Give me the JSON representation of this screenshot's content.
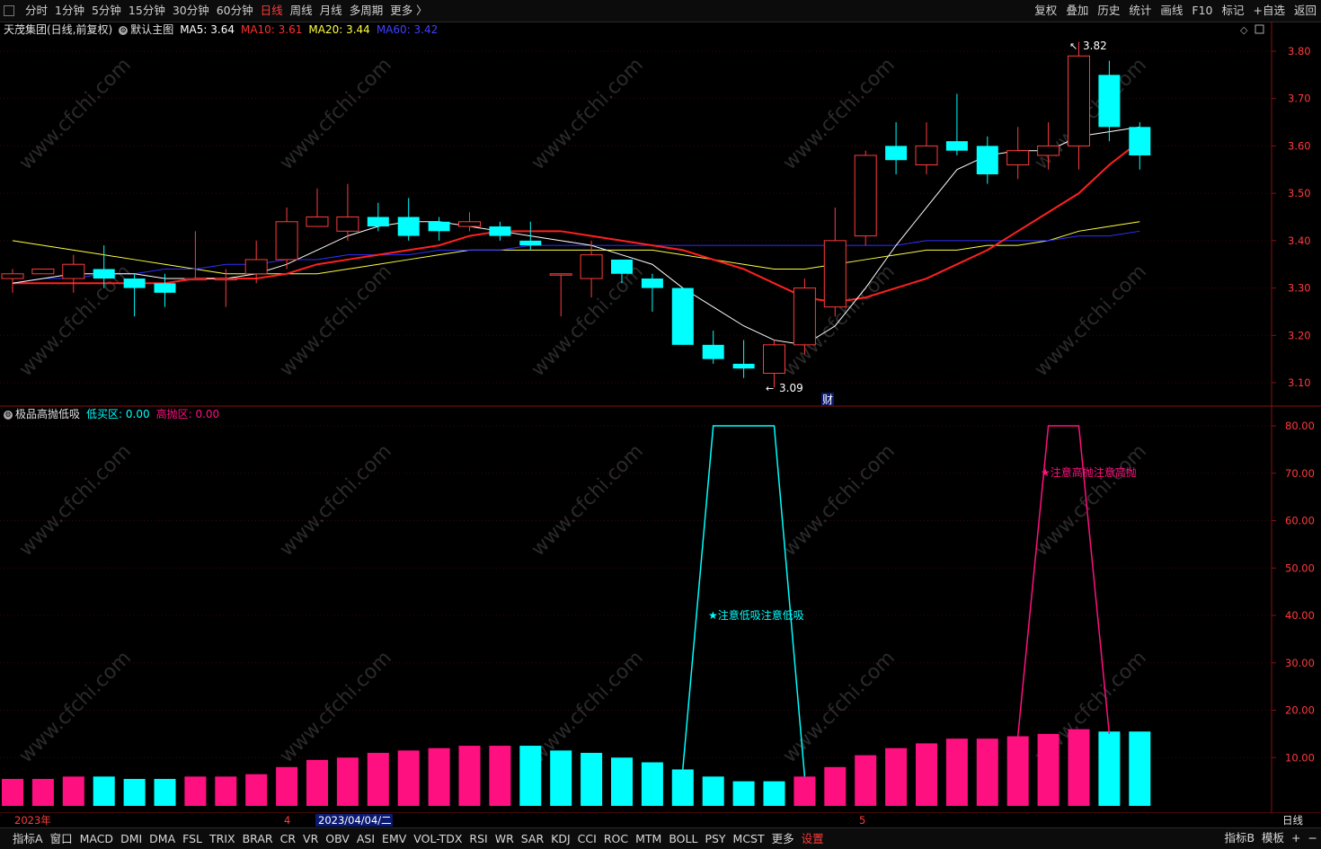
{
  "toolbar": {
    "tabs": [
      "分时",
      "1分钟",
      "5分钟",
      "15分钟",
      "30分钟",
      "60分钟",
      "日线",
      "周线",
      "月线",
      "多周期",
      "更多 〉"
    ],
    "active_tab": "日线",
    "right_buttons": [
      "复权",
      "叠加",
      "历史",
      "统计",
      "画线",
      "F10",
      "标记",
      "+自选",
      "返回"
    ]
  },
  "main_legend": {
    "stock": "天茂集团(日线,前复权)",
    "main_name": "默认主图",
    "ma5": "MA5: 3.64",
    "ma10": "MA10: 3.61",
    "ma20": "MA20: 3.44",
    "ma60": "MA60: 3.42"
  },
  "indicator_legend": {
    "name": "极品高抛低吸",
    "low": "低买区: 0.00",
    "high": "高抛区: 0.00"
  },
  "annotations": {
    "high_price": "3.82",
    "low_price": "3.09",
    "cai_marker": "财",
    "low_buy_text": "★注意低吸注意低吸",
    "high_sell_text": "★注意高抛注意高抛"
  },
  "date_axis": {
    "year": "2023年",
    "month4": "4",
    "cursor_date": "2023/04/04/二",
    "month5": "5",
    "period": "日线"
  },
  "bottombar": {
    "items": [
      "指标A",
      "窗口",
      "MACD",
      "DMI",
      "DMA",
      "FSL",
      "TRIX",
      "BRAR",
      "CR",
      "VR",
      "OBV",
      "ASI",
      "EMV",
      "VOL-TDX",
      "RSI",
      "WR",
      "SAR",
      "KDJ",
      "CCI",
      "ROC",
      "MTM",
      "BOLL",
      "PSY",
      "MCST",
      "更多",
      "设置"
    ],
    "right_items": [
      "指标B",
      "模板",
      "+",
      "−"
    ]
  },
  "colors": {
    "up": "#ff3b3b",
    "down": "#00ffff",
    "ma5": "#ffffff",
    "ma10": "#ff2020",
    "ma20": "#ffff40",
    "ma60": "#3030ff",
    "bar_pink": "#ff1080",
    "bar_cyan": "#00ffff"
  },
  "chart_data": {
    "type": "candlestick",
    "price_axis": {
      "ticks": [
        "3.80",
        "3.70",
        "3.60",
        "3.50",
        "3.40",
        "3.30",
        "3.20",
        "3.10"
      ],
      "ylim": [
        3.07,
        3.87
      ]
    },
    "indicator_axis": {
      "ticks": [
        "80.00",
        "70.00",
        "60.00",
        "50.00",
        "40.00",
        "30.00",
        "20.00",
        "10.00"
      ],
      "ylim": [
        0,
        85
      ]
    },
    "candles": [
      {
        "o": 3.32,
        "c": 3.33,
        "h": 3.34,
        "l": 3.29
      },
      {
        "o": 3.33,
        "c": 3.34,
        "h": 3.34,
        "l": 3.33
      },
      {
        "o": 3.32,
        "c": 3.35,
        "h": 3.37,
        "l": 3.29
      },
      {
        "o": 3.34,
        "c": 3.32,
        "h": 3.39,
        "l": 3.3
      },
      {
        "o": 3.32,
        "c": 3.3,
        "h": 3.33,
        "l": 3.24
      },
      {
        "o": 3.31,
        "c": 3.29,
        "h": 3.33,
        "l": 3.26
      },
      {
        "o": 3.32,
        "c": 3.32,
        "h": 3.42,
        "l": 3.32
      },
      {
        "o": 3.32,
        "c": 3.32,
        "h": 3.34,
        "l": 3.26
      },
      {
        "o": 3.33,
        "c": 3.36,
        "h": 3.4,
        "l": 3.31
      },
      {
        "o": 3.36,
        "c": 3.44,
        "h": 3.47,
        "l": 3.34
      },
      {
        "o": 3.43,
        "c": 3.45,
        "h": 3.51,
        "l": 3.43
      },
      {
        "o": 3.42,
        "c": 3.45,
        "h": 3.52,
        "l": 3.4
      },
      {
        "o": 3.45,
        "c": 3.43,
        "h": 3.48,
        "l": 3.42
      },
      {
        "o": 3.45,
        "c": 3.41,
        "h": 3.49,
        "l": 3.4
      },
      {
        "o": 3.44,
        "c": 3.42,
        "h": 3.45,
        "l": 3.4
      },
      {
        "o": 3.43,
        "c": 3.44,
        "h": 3.46,
        "l": 3.42
      },
      {
        "o": 3.43,
        "c": 3.41,
        "h": 3.44,
        "l": 3.4
      },
      {
        "o": 3.4,
        "c": 3.39,
        "h": 3.44,
        "l": 3.38
      },
      {
        "o": 3.33,
        "c": 3.33,
        "h": 3.33,
        "l": 3.24
      },
      {
        "o": 3.32,
        "c": 3.37,
        "h": 3.4,
        "l": 3.28
      },
      {
        "o": 3.36,
        "c": 3.33,
        "h": 3.36,
        "l": 3.31
      },
      {
        "o": 3.32,
        "c": 3.3,
        "h": 3.33,
        "l": 3.25
      },
      {
        "o": 3.3,
        "c": 3.18,
        "h": 3.3,
        "l": 3.18
      },
      {
        "o": 3.18,
        "c": 3.15,
        "h": 3.21,
        "l": 3.14
      },
      {
        "o": 3.14,
        "c": 3.13,
        "h": 3.19,
        "l": 3.11
      },
      {
        "o": 3.12,
        "c": 3.18,
        "h": 3.19,
        "l": 3.09
      },
      {
        "o": 3.18,
        "c": 3.3,
        "h": 3.32,
        "l": 3.16
      },
      {
        "o": 3.26,
        "c": 3.4,
        "h": 3.47,
        "l": 3.24
      },
      {
        "o": 3.41,
        "c": 3.58,
        "h": 3.59,
        "l": 3.39
      },
      {
        "o": 3.6,
        "c": 3.57,
        "h": 3.65,
        "l": 3.54
      },
      {
        "o": 3.56,
        "c": 3.6,
        "h": 3.65,
        "l": 3.54
      },
      {
        "o": 3.61,
        "c": 3.59,
        "h": 3.71,
        "l": 3.58
      },
      {
        "o": 3.6,
        "c": 3.54,
        "h": 3.62,
        "l": 3.52
      },
      {
        "o": 3.56,
        "c": 3.59,
        "h": 3.64,
        "l": 3.53
      },
      {
        "o": 3.58,
        "c": 3.6,
        "h": 3.65,
        "l": 3.55
      },
      {
        "o": 3.6,
        "c": 3.79,
        "h": 3.82,
        "l": 3.55
      },
      {
        "o": 3.75,
        "c": 3.64,
        "h": 3.78,
        "l": 3.61
      },
      {
        "o": 3.64,
        "c": 3.58,
        "h": 3.65,
        "l": 3.55
      }
    ],
    "ma5": [
      3.31,
      3.32,
      3.33,
      3.33,
      3.33,
      3.32,
      3.32,
      3.32,
      3.33,
      3.35,
      3.38,
      3.41,
      3.43,
      3.44,
      3.44,
      3.43,
      3.42,
      3.41,
      3.4,
      3.39,
      3.37,
      3.35,
      3.3,
      3.26,
      3.22,
      3.19,
      3.18,
      3.22,
      3.3,
      3.39,
      3.47,
      3.55,
      3.58,
      3.59,
      3.59,
      3.62,
      3.63,
      3.64
    ],
    "ma10": [
      3.31,
      3.31,
      3.31,
      3.31,
      3.31,
      3.31,
      3.32,
      3.32,
      3.32,
      3.33,
      3.35,
      3.36,
      3.37,
      3.38,
      3.39,
      3.41,
      3.42,
      3.42,
      3.42,
      3.41,
      3.4,
      3.39,
      3.38,
      3.36,
      3.34,
      3.31,
      3.28,
      3.27,
      3.28,
      3.3,
      3.32,
      3.35,
      3.38,
      3.42,
      3.46,
      3.5,
      3.56,
      3.61
    ],
    "ma20": [
      3.4,
      3.39,
      3.38,
      3.37,
      3.36,
      3.35,
      3.34,
      3.33,
      3.33,
      3.33,
      3.33,
      3.34,
      3.35,
      3.36,
      3.37,
      3.38,
      3.38,
      3.38,
      3.38,
      3.38,
      3.38,
      3.38,
      3.37,
      3.36,
      3.35,
      3.34,
      3.34,
      3.35,
      3.36,
      3.37,
      3.38,
      3.38,
      3.39,
      3.39,
      3.4,
      3.42,
      3.43,
      3.44
    ],
    "ma60": [
      3.31,
      3.32,
      3.32,
      3.33,
      3.33,
      3.34,
      3.34,
      3.35,
      3.35,
      3.36,
      3.36,
      3.37,
      3.37,
      3.37,
      3.38,
      3.38,
      3.38,
      3.39,
      3.39,
      3.39,
      3.39,
      3.39,
      3.39,
      3.39,
      3.39,
      3.39,
      3.39,
      3.39,
      3.39,
      3.39,
      3.4,
      3.4,
      3.4,
      3.4,
      3.4,
      3.41,
      3.41,
      3.42
    ],
    "indicator_bars": [
      5.5,
      5.5,
      6,
      6,
      5.5,
      5.5,
      6,
      6,
      6.5,
      8,
      9.5,
      10,
      11,
      11.5,
      12,
      12.5,
      12.5,
      12.5,
      11.5,
      11,
      10,
      9,
      7.5,
      6,
      5,
      5,
      6,
      8,
      10.5,
      12,
      13,
      14,
      14,
      14.5,
      15,
      16,
      15.5,
      15.5
    ],
    "indicator_bar_colors": [
      "p",
      "p",
      "p",
      "c",
      "c",
      "c",
      "p",
      "p",
      "p",
      "p",
      "p",
      "p",
      "p",
      "p",
      "p",
      "p",
      "p",
      "c",
      "c",
      "c",
      "c",
      "c",
      "c",
      "c",
      "c",
      "c",
      "p",
      "p",
      "p",
      "p",
      "p",
      "p",
      "p",
      "p",
      "p",
      "p",
      "c",
      "c"
    ],
    "low_buy_line": {
      "idx": [
        22,
        23,
        25,
        26
      ],
      "vals": [
        7.5,
        80,
        80,
        6
      ]
    },
    "high_sell_line": {
      "idx": [
        33,
        34,
        35,
        36
      ],
      "vals": [
        14.5,
        80,
        80,
        15
      ]
    }
  }
}
